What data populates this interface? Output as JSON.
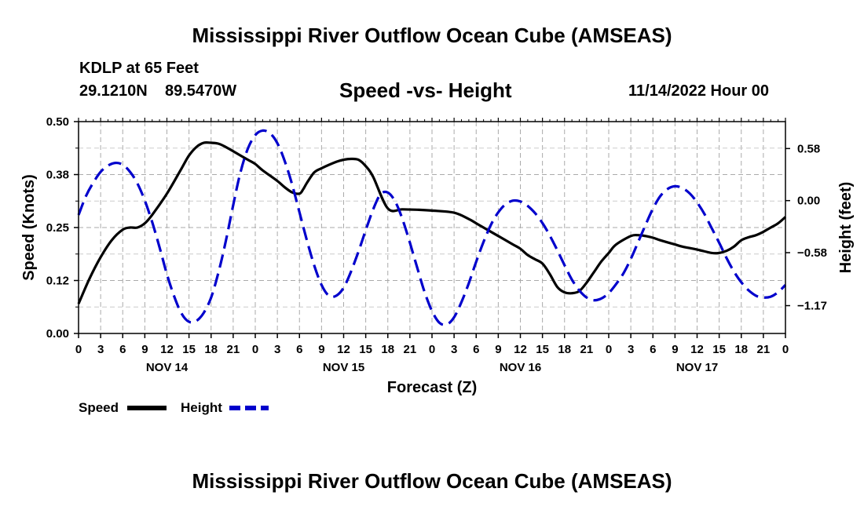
{
  "header": {
    "title": "Mississippi River Outflow Ocean Cube (AMSEAS)",
    "station": "KDLP at 65 Feet",
    "lat": "29.1210N",
    "lon": "89.5470W",
    "subtitle": "Speed -vs- Height",
    "datetime": "11/14/2022 Hour 00"
  },
  "footer": {
    "title": "Mississippi River Outflow Ocean Cube (AMSEAS)"
  },
  "chart_data": {
    "type": "line",
    "xlabel": "Forecast (Z)",
    "ylabel": "Speed (Knots)",
    "y2label": "Height (feet)",
    "xlim": [
      0,
      96
    ],
    "ylim": [
      0,
      0.5
    ],
    "y2lim": [
      -1.48,
      0.88
    ],
    "x_tick_labels": [
      "0",
      "3",
      "6",
      "9",
      "12",
      "15",
      "18",
      "21",
      "0",
      "3",
      "6",
      "9",
      "12",
      "15",
      "18",
      "21",
      "0",
      "3",
      "6",
      "9",
      "12",
      "15",
      "18",
      "21",
      "0",
      "3",
      "6",
      "9",
      "12",
      "15",
      "18",
      "21",
      "0"
    ],
    "y_tick_labels": [
      "0.00",
      "0.12",
      "0.25",
      "0.38",
      "0.50"
    ],
    "y2_tick_labels": [
      "0.58",
      "0.00",
      "−0.58",
      "−1.17"
    ],
    "y2_tick_values": [
      0.58,
      0.0,
      -0.58,
      -1.17
    ],
    "day_labels": [
      {
        "label": "NOV 14",
        "hour": 12
      },
      {
        "label": "NOV 15",
        "hour": 36
      },
      {
        "label": "NOV 16",
        "hour": 60
      },
      {
        "label": "NOV 17",
        "hour": 84
      }
    ],
    "grid": true,
    "series": [
      {
        "name": "Speed",
        "axis": "left",
        "color": "#000000",
        "style": "solid",
        "x": [
          0,
          1.5,
          3,
          4.5,
          6,
          7,
          8,
          9,
          10,
          12,
          14,
          15,
          16,
          17,
          18,
          19,
          20,
          21,
          23,
          24,
          25,
          27,
          28,
          29,
          30,
          30.5,
          31,
          32,
          33,
          35,
          36,
          37,
          38,
          39,
          40,
          42,
          44,
          46,
          48,
          51,
          53,
          54,
          55,
          57,
          59,
          60,
          61,
          62,
          63,
          64,
          65,
          66,
          67,
          68,
          69,
          70,
          71,
          72,
          73,
          75,
          76,
          77,
          78,
          79,
          81,
          82,
          84,
          86,
          87,
          88,
          89,
          90,
          91,
          92,
          93,
          94,
          95,
          96
        ],
        "y": [
          0.07,
          0.13,
          0.18,
          0.22,
          0.245,
          0.25,
          0.25,
          0.26,
          0.28,
          0.33,
          0.39,
          0.42,
          0.44,
          0.45,
          0.45,
          0.448,
          0.44,
          0.43,
          0.41,
          0.4,
          0.385,
          0.36,
          0.345,
          0.333,
          0.33,
          0.34,
          0.355,
          0.38,
          0.39,
          0.405,
          0.41,
          0.412,
          0.41,
          0.395,
          0.37,
          0.295,
          0.293,
          0.292,
          0.29,
          0.285,
          0.27,
          0.26,
          0.25,
          0.23,
          0.21,
          0.2,
          0.185,
          0.175,
          0.165,
          0.14,
          0.11,
          0.097,
          0.095,
          0.1,
          0.12,
          0.145,
          0.17,
          0.19,
          0.21,
          0.23,
          0.232,
          0.23,
          0.226,
          0.22,
          0.21,
          0.205,
          0.198,
          0.19,
          0.19,
          0.195,
          0.205,
          0.22,
          0.227,
          0.232,
          0.24,
          0.25,
          0.26,
          0.275
        ]
      },
      {
        "name": "Height",
        "axis": "right",
        "color": "#0000cc",
        "style": "dashed",
        "x": [
          0,
          1,
          2,
          3,
          4,
          5,
          6,
          7,
          8,
          9,
          10,
          11,
          12,
          13,
          14,
          15,
          16,
          17,
          18,
          19,
          20,
          21,
          22,
          23,
          24,
          25,
          26,
          27,
          28,
          29,
          30,
          31,
          32,
          33,
          34,
          35,
          36,
          37,
          38,
          39,
          40,
          41,
          42,
          43,
          44,
          45,
          46,
          47,
          48,
          49,
          50,
          51,
          52,
          53,
          54,
          55,
          56,
          57,
          58,
          59,
          60,
          61,
          62,
          63,
          64,
          65,
          66,
          67,
          68,
          69,
          70,
          71,
          72,
          73,
          74,
          75,
          76,
          77,
          78,
          79,
          80,
          81,
          82,
          83,
          84,
          85,
          86,
          87,
          88,
          89,
          90,
          91,
          92,
          93,
          94,
          95,
          96
        ],
        "y": [
          -0.16,
          0.05,
          0.2,
          0.32,
          0.39,
          0.42,
          0.4,
          0.32,
          0.19,
          0.0,
          -0.24,
          -0.52,
          -0.82,
          -1.07,
          -1.26,
          -1.35,
          -1.34,
          -1.25,
          -1.08,
          -0.8,
          -0.45,
          -0.05,
          0.32,
          0.58,
          0.73,
          0.78,
          0.75,
          0.64,
          0.44,
          0.18,
          -0.13,
          -0.44,
          -0.72,
          -0.94,
          -1.06,
          -1.06,
          -0.97,
          -0.79,
          -0.57,
          -0.33,
          -0.1,
          0.07,
          0.09,
          -0.01,
          -0.21,
          -0.47,
          -0.75,
          -1.02,
          -1.23,
          -1.36,
          -1.38,
          -1.3,
          -1.13,
          -0.92,
          -0.68,
          -0.46,
          -0.27,
          -0.13,
          -0.04,
          0.0,
          -0.01,
          -0.06,
          -0.14,
          -0.25,
          -0.39,
          -0.55,
          -0.72,
          -0.88,
          -1.0,
          -1.08,
          -1.11,
          -1.09,
          -1.03,
          -0.93,
          -0.81,
          -0.65,
          -0.46,
          -0.27,
          -0.09,
          0.05,
          0.13,
          0.16,
          0.14,
          0.08,
          -0.02,
          -0.15,
          -0.31,
          -0.47,
          -0.64,
          -0.79,
          -0.91,
          -1.0,
          -1.06,
          -1.08,
          -1.07,
          -1.02,
          -0.94
        ]
      }
    ]
  }
}
